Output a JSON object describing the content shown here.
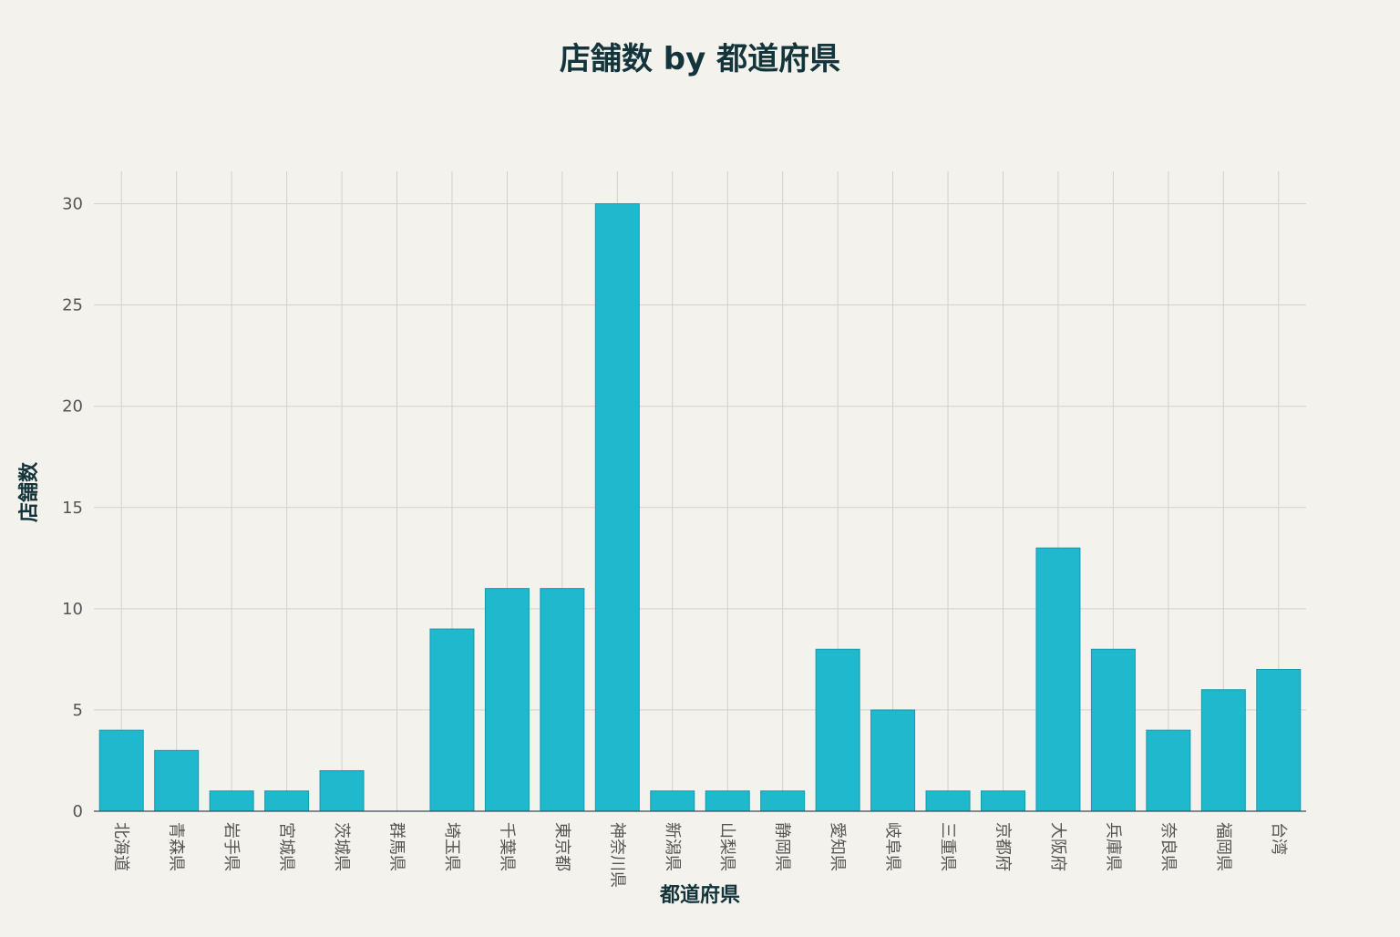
{
  "chart_data": {
    "type": "bar",
    "title": "店舗数 by 都道府県",
    "xlabel": "都道府県",
    "ylabel": "店舗数",
    "categories": [
      "北海道",
      "青森県",
      "岩手県",
      "宮城県",
      "茨城県",
      "群馬県",
      "埼玉県",
      "千葉県",
      "東京都",
      "神奈川県",
      "新潟県",
      "山梨県",
      "静岡県",
      "愛知県",
      "岐阜県",
      "三重県",
      "京都府",
      "大阪府",
      "兵庫県",
      "奈良県",
      "福岡県",
      "台湾"
    ],
    "values": [
      4,
      3,
      1,
      1,
      2,
      0,
      9,
      11,
      11,
      30,
      1,
      1,
      1,
      8,
      5,
      1,
      1,
      13,
      8,
      4,
      6,
      7
    ],
    "ylim": [
      0,
      31.6
    ],
    "yticks": [
      0,
      5,
      10,
      15,
      20,
      25,
      30
    ],
    "grid": true,
    "bar_color": "#1fb8cd",
    "background": "#f3f2ec"
  }
}
